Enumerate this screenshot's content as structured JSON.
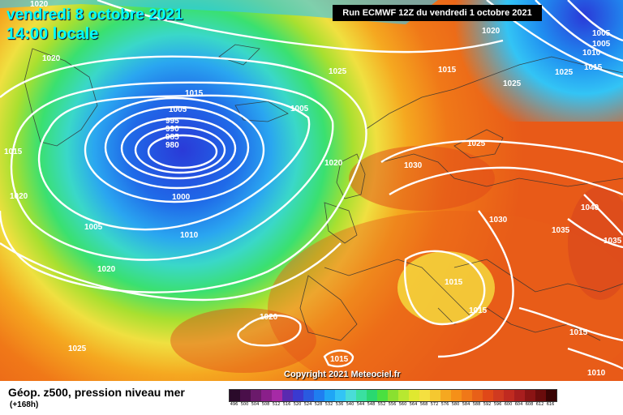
{
  "title": {
    "date": "vendredi 8 octobre 2021",
    "time": "14:00 locale"
  },
  "run_info": "Run ECMWF 12Z du vendredi 1 octobre 2021",
  "copyright": "Copyright 2021 Meteociel.fr",
  "legend": {
    "label": "Géop. z500, pression niveau mer",
    "hours": "(+168h)",
    "scale_values": [
      "496",
      "500",
      "504",
      "508",
      "512",
      "516",
      "520",
      "524",
      "528",
      "532",
      "536",
      "540",
      "544",
      "548",
      "552",
      "556",
      "560",
      "564",
      "568",
      "572",
      "576",
      "580",
      "584",
      "588",
      "592",
      "596",
      "600",
      "604",
      "608",
      "612",
      "616"
    ],
    "scale_colors": [
      "#2a0a2a",
      "#4a0f4a",
      "#6b1a6b",
      "#8a1f8a",
      "#a62aa6",
      "#5a2ab0",
      "#3a3ad0",
      "#2a5ae0",
      "#1f7ef0",
      "#1fa6f5",
      "#33c4f5",
      "#4adcd8",
      "#3ae0a0",
      "#2ad870",
      "#4ae040",
      "#8ae030",
      "#b8e830",
      "#e0e830",
      "#f5e040",
      "#f5c830",
      "#f5a820",
      "#f59018",
      "#f07818",
      "#e86018",
      "#e04818",
      "#d03a20",
      "#c02a20",
      "#a81e1e",
      "#8a1414",
      "#6a0c0c",
      "#3a0404"
    ]
  },
  "isobars": [
    "1020",
    "1020",
    "1015",
    "1015",
    "1005",
    "995",
    "990",
    "985",
    "980",
    "1000",
    "1005",
    "1010",
    "1020",
    "1025",
    "1020",
    "1005",
    "1015",
    "1020",
    "1030",
    "1025",
    "1025",
    "1020",
    "1005",
    "1005",
    "1010",
    "1015",
    "1025",
    "1030",
    "1040",
    "1035",
    "1035",
    "1015",
    "1015",
    "1020",
    "1015",
    "1015",
    "1010"
  ]
}
